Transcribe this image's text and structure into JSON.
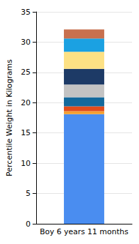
{
  "chart_data": {
    "type": "bar",
    "stacked": true,
    "grid": true,
    "y_label": "Percentile Weight in Kilograms",
    "categories": [
      "Boy 6 years 11 months"
    ],
    "series": [
      {
        "color": "#4a8df0",
        "values": [
          18.1
        ]
      },
      {
        "color": "#f5a030",
        "values": [
          0.5
        ]
      },
      {
        "color": "#e04c1c",
        "values": [
          0.8
        ]
      },
      {
        "color": "#13699c",
        "values": [
          1.5
        ]
      },
      {
        "color": "#c3c3c3",
        "values": [
          2.1
        ]
      },
      {
        "color": "#1d3a66",
        "values": [
          2.6
        ]
      },
      {
        "color": "#fde184",
        "values": [
          2.8
        ]
      },
      {
        "color": "#1ba1e2",
        "values": [
          2.2
        ]
      },
      {
        "color": "#c8704e",
        "values": [
          1.5
        ]
      }
    ],
    "ylim": [
      0,
      35
    ],
    "yticks": [
      0,
      5,
      10,
      15,
      20,
      25,
      30,
      35
    ]
  }
}
